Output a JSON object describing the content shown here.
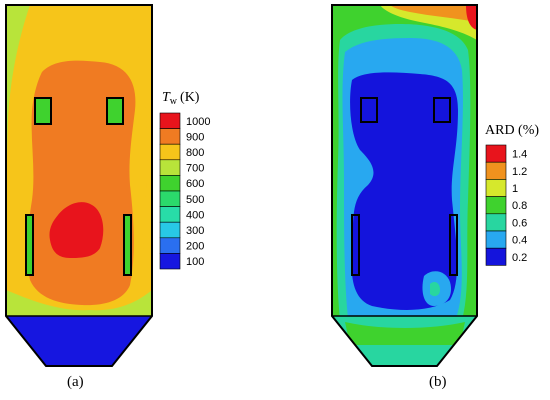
{
  "panels": [
    {
      "id": "a",
      "label": "(a)",
      "legend": {
        "title_main": "T",
        "title_sub": "w",
        "title_unit": "(K)",
        "items": [
          {
            "label": "1000",
            "color": "#e8141c"
          },
          {
            "label": "900",
            "color": "#f07b22"
          },
          {
            "label": "800",
            "color": "#f6c51a"
          },
          {
            "label": "700",
            "color": "#b8e43a"
          },
          {
            "label": "600",
            "color": "#3fd22e"
          },
          {
            "label": "500",
            "color": "#2bd96b"
          },
          {
            "label": "400",
            "color": "#28dca8"
          },
          {
            "label": "300",
            "color": "#28c8e6"
          },
          {
            "label": "200",
            "color": "#2a6ff0"
          },
          {
            "label": "100",
            "color": "#1616e0"
          }
        ]
      }
    },
    {
      "id": "b",
      "label": "(b)",
      "legend": {
        "title": "ARD (%)",
        "items": [
          {
            "label": "1.4",
            "color": "#e8141c"
          },
          {
            "label": "1.2",
            "color": "#f0921e"
          },
          {
            "label": "1",
            "color": "#d6e82c"
          },
          {
            "label": "0.8",
            "color": "#3fd22e"
          },
          {
            "label": "0.6",
            "color": "#28d6a0"
          },
          {
            "label": "0.4",
            "color": "#28a8f0"
          },
          {
            "label": "0.2",
            "color": "#1414dc"
          }
        ]
      }
    }
  ]
}
